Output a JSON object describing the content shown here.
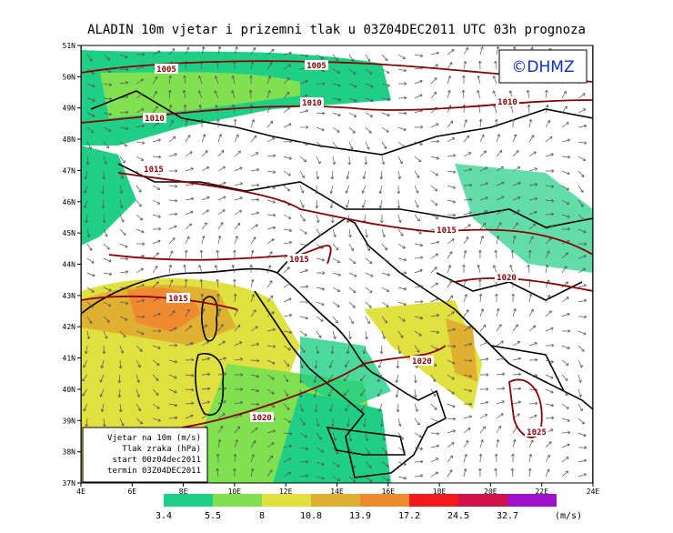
{
  "title": "ALADIN 10m vjetar i prizemni tlak u 03Z04DEC2011 UTC 03h prognoza",
  "logo": "©DHMZ",
  "lat_labels": [
    "51N",
    "50N",
    "49N",
    "48N",
    "47N",
    "46N",
    "45N",
    "44N",
    "43N",
    "42N",
    "41N",
    "40N",
    "39N",
    "38N",
    "37N"
  ],
  "lon_labels": [
    "4E",
    "6E",
    "8E",
    "10E",
    "12E",
    "14E",
    "16E",
    "18E",
    "20E",
    "22E",
    "24E"
  ],
  "isobar_labels": [
    "1005",
    "1005",
    "1010",
    "1010",
    "1010",
    "1015",
    "1015",
    "1015",
    "1015",
    "1020",
    "1020",
    "1020",
    "1025"
  ],
  "info_box": [
    "Vjetar na 10m (m/s)",
    "Tlak zraka (hPa)",
    "start 00z04dec2011",
    "termin 03Z04DEC2011"
  ],
  "colorbar": {
    "labels": [
      "3.4",
      "5.5",
      "8",
      "10.8",
      "13.9",
      "17.2",
      "24.5",
      "32.7"
    ],
    "unit": "(m/s)",
    "colors": [
      "#1fcf86",
      "#80e050",
      "#e0e040",
      "#e0b030",
      "#f08a30",
      "#f01818",
      "#d0104a",
      "#a010c8"
    ]
  }
}
